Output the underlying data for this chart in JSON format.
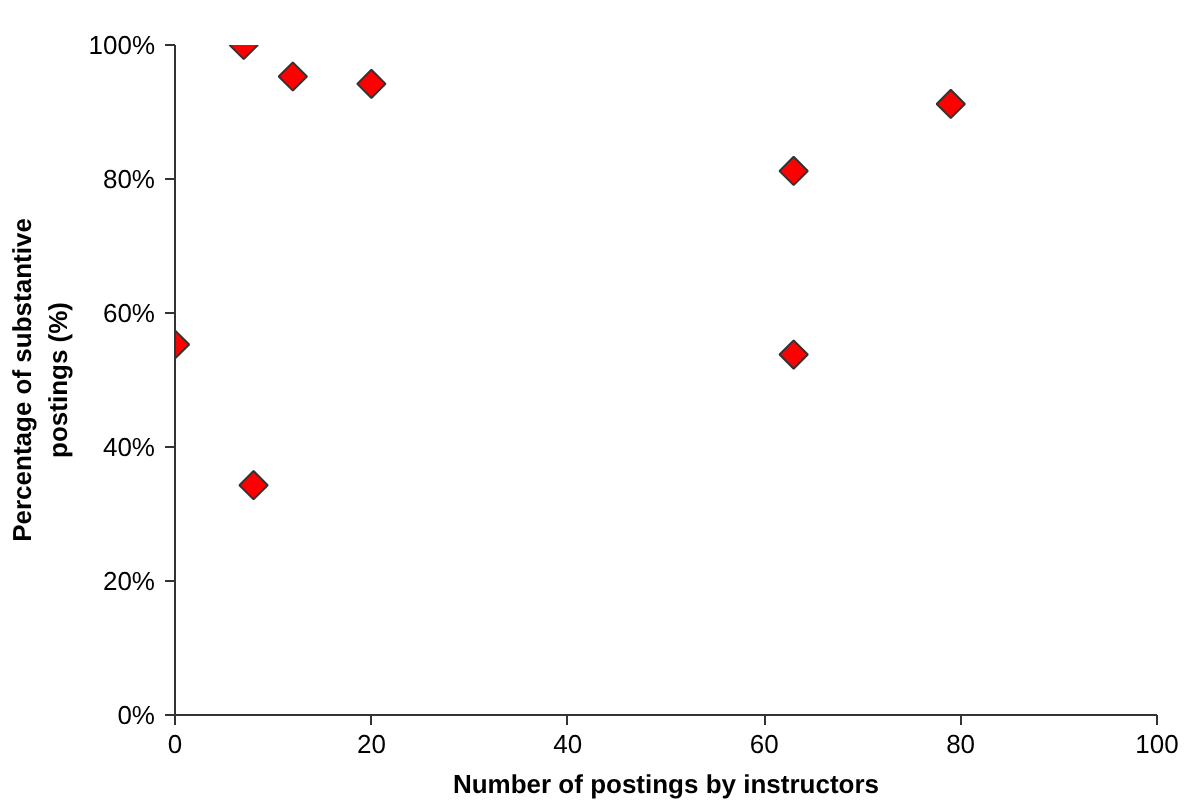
{
  "chart_data": {
    "type": "scatter",
    "xlabel": "Number of postings by instructors",
    "ylabel": "Percentage of substantive\npostings (%)",
    "x": [
      7,
      12,
      20,
      79,
      63,
      0,
      63,
      8
    ],
    "series": [
      {
        "color": "#ff0000",
        "values": [
          100,
          95.3,
          94.2,
          91.2,
          81.2,
          55.3,
          53.8,
          34.3
        ]
      }
    ],
    "xlim": [
      0,
      100
    ],
    "xticks": [
      0,
      20,
      40,
      60,
      80,
      100
    ],
    "ylim": [
      0,
      100
    ],
    "yticks": [
      {
        "value": 0,
        "label": "0%"
      },
      {
        "value": 20,
        "label": "20%"
      },
      {
        "value": 40,
        "label": "40%"
      },
      {
        "value": 60,
        "label": "60%"
      },
      {
        "value": 80,
        "label": "80%"
      },
      {
        "value": 100,
        "label": "100%"
      }
    ],
    "marker": "diamond",
    "grid": false
  }
}
